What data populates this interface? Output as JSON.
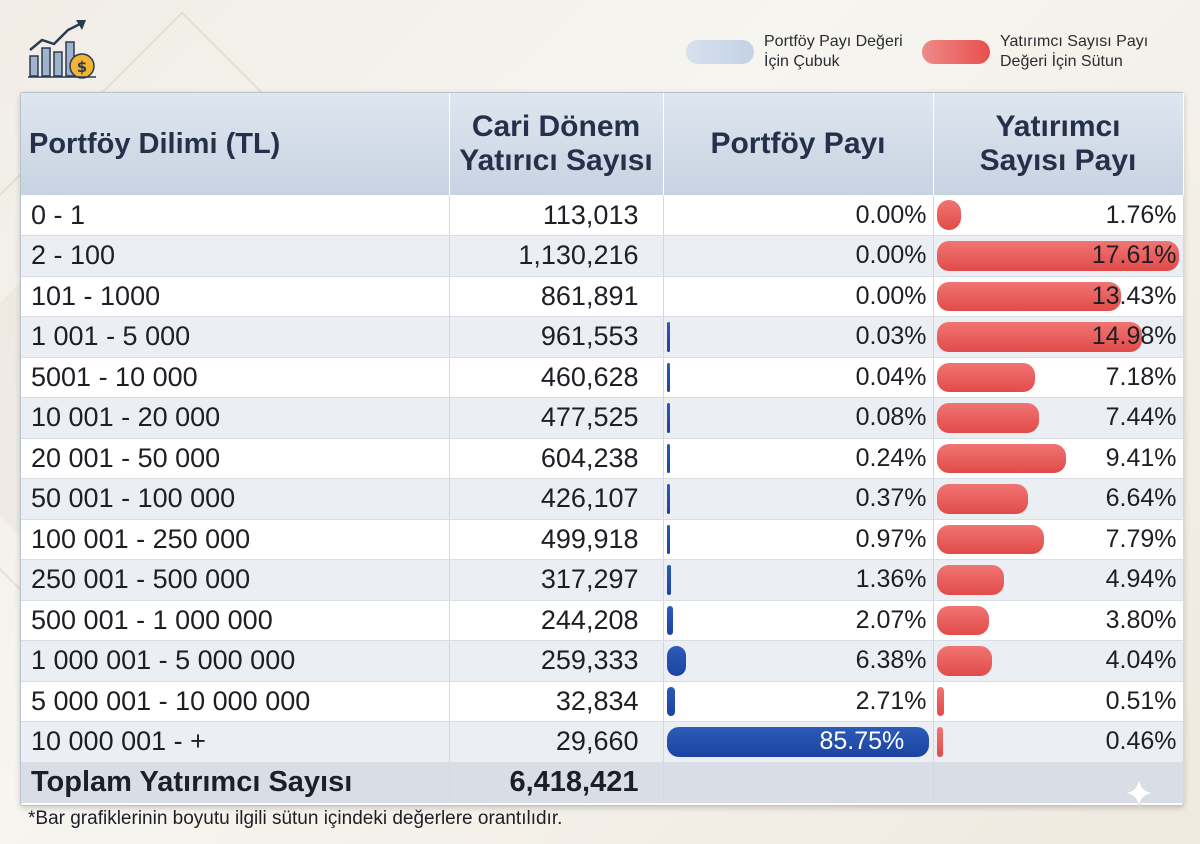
{
  "legend": {
    "portfolio_bar": "Portföy Payı Değeri\nİçin Çubuk",
    "investor_bar": "Yatırımcı Sayısı Payı\nDeğeri İçin Sütun",
    "portfolio_color": "#2c5bb8",
    "investor_color": "#e64f4d"
  },
  "table": {
    "headers": [
      "Portföy Dilimi (TL)",
      "Cari Dönem\nYatırıcı Sayısı",
      "Portföy Payı",
      "Yatırımcı\nSayısı Payı"
    ],
    "total_label": "Toplam Yatırımcı Sayısı",
    "total_value": "6,418,421"
  },
  "chart_data": {
    "type": "table",
    "rows": [
      {
        "slice": "0 - 1",
        "investors": "113,013",
        "portfolio_share": 0.0,
        "investor_share": 1.76
      },
      {
        "slice": "2 - 100",
        "investors": "1,130,216",
        "portfolio_share": 0.0,
        "investor_share": 17.61
      },
      {
        "slice": "101 - 1000",
        "investors": "861,891",
        "portfolio_share": 0.0,
        "investor_share": 13.43
      },
      {
        "slice": "1 001 - 5 000",
        "investors": "961,553",
        "portfolio_share": 0.03,
        "investor_share": 14.98
      },
      {
        "slice": "5001 - 10 000",
        "investors": "460,628",
        "portfolio_share": 0.04,
        "investor_share": 7.18
      },
      {
        "slice": "10 001 - 20 000",
        "investors": "477,525",
        "portfolio_share": 0.08,
        "investor_share": 7.44
      },
      {
        "slice": "20 001 - 50 000",
        "investors": "604,238",
        "portfolio_share": 0.24,
        "investor_share": 9.41
      },
      {
        "slice": "50 001 - 100 000",
        "investors": "426,107",
        "portfolio_share": 0.37,
        "investor_share": 6.64
      },
      {
        "slice": "100 001 - 250 000",
        "investors": "499,918",
        "portfolio_share": 0.97,
        "investor_share": 7.79
      },
      {
        "slice": "250 001 - 500 000",
        "investors": "317,297",
        "portfolio_share": 1.36,
        "investor_share": 4.94
      },
      {
        "slice": "500 001 - 1 000 000",
        "investors": "244,208",
        "portfolio_share": 2.07,
        "investor_share": 3.8
      },
      {
        "slice": "1 000 001 - 5 000 000",
        "investors": "259,333",
        "portfolio_share": 6.38,
        "investor_share": 4.04
      },
      {
        "slice": "5 000 001 - 10 000 000",
        "investors": "32,834",
        "portfolio_share": 2.71,
        "investor_share": 0.51
      },
      {
        "slice": "10 000 001 - +",
        "investors": "29,660",
        "portfolio_share": 85.75,
        "investor_share": 0.46
      }
    ]
  },
  "footnote": "*Bar grafiklerinin boyutu ilgili sütun içindeki değerlere orantılıdır."
}
